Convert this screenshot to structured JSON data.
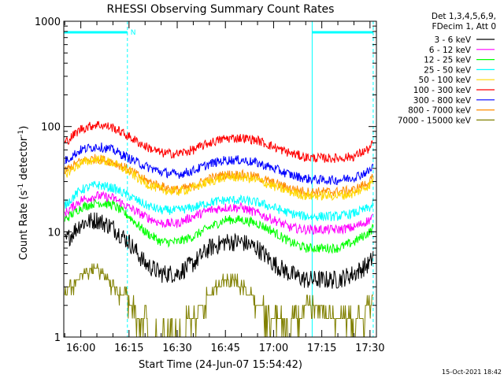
{
  "chart_data": {
    "type": "line",
    "title": "RHESSI Observing Summary Count Rates",
    "xlabel_prefix": "Start Time (24-Jun-07 15:54:42)",
    "ylabel": "Count Rate (s⁻¹ detector⁻¹)",
    "yscale": "log",
    "ylim": [
      1,
      1000
    ],
    "xlim": [
      "15:54:42",
      "17:32:00"
    ],
    "x_ticks": [
      "16:00",
      "16:15",
      "16:30",
      "16:45",
      "17:00",
      "17:15",
      "17:30"
    ],
    "y_ticks": [
      "1",
      "10",
      "100",
      "1000"
    ],
    "legend_header": [
      "Det 1,3,4,5,6,9,",
      "FDecim 1, Att 0"
    ],
    "legend_position": "right",
    "timestamp": "15-Oct-2021 18:42",
    "flag_label": "N",
    "flag_color": "#00ffff",
    "night_intervals": [
      [
        "15:54:42",
        "16:14:30"
      ],
      [
        "17:12:00",
        "17:31:00"
      ]
    ],
    "x": [
      "15:55",
      "16:00",
      "16:05",
      "16:10",
      "16:15",
      "16:20",
      "16:25",
      "16:30",
      "16:35",
      "16:40",
      "16:45",
      "16:50",
      "16:55",
      "17:00",
      "17:05",
      "17:10",
      "17:15",
      "17:20",
      "17:25",
      "17:30",
      "17:31"
    ],
    "series": [
      {
        "name": "3 - 6 keV",
        "color": "#000000",
        "values": [
          8,
          12,
          13,
          11,
          8,
          5,
          4,
          4,
          5,
          7,
          8,
          8,
          7,
          5,
          4,
          3.5,
          3.5,
          3.5,
          4,
          5,
          6
        ]
      },
      {
        "name": "6 - 12 keV",
        "color": "#ff00ff",
        "values": [
          15,
          20,
          22,
          21,
          17,
          14,
          12,
          12,
          14,
          16,
          17,
          17,
          15,
          13,
          11,
          10.5,
          10.5,
          10.5,
          11,
          13,
          14
        ]
      },
      {
        "name": "12 - 25 keV",
        "color": "#00ff00",
        "values": [
          13,
          17,
          19,
          18,
          14,
          10,
          8,
          8,
          9,
          11,
          13,
          13,
          12,
          10,
          8,
          7,
          7,
          7,
          8,
          10,
          11
        ]
      },
      {
        "name": "25 - 50 keV",
        "color": "#00ffff",
        "values": [
          18,
          25,
          28,
          26,
          22,
          18,
          16,
          16,
          17,
          19,
          20,
          20,
          19,
          17,
          15,
          14,
          14,
          14,
          15,
          17,
          18
        ]
      },
      {
        "name": "50 - 100 keV",
        "color": "#ffd700",
        "values": [
          35,
          45,
          49,
          45,
          37,
          29,
          25,
          24,
          26,
          30,
          33,
          33,
          31,
          27,
          24,
          22,
          22,
          22,
          23,
          28,
          31
        ]
      },
      {
        "name": "100 - 300 keV",
        "color": "#ff0000",
        "values": [
          70,
          95,
          105,
          98,
          80,
          65,
          56,
          55,
          60,
          70,
          77,
          78,
          74,
          64,
          56,
          51,
          50,
          50,
          52,
          62,
          70
        ]
      },
      {
        "name": "300 - 800 keV",
        "color": "#0000ff",
        "values": [
          47,
          60,
          65,
          60,
          50,
          42,
          37,
          35,
          38,
          44,
          48,
          48,
          45,
          40,
          35,
          32,
          31,
          31,
          33,
          38,
          43
        ]
      },
      {
        "name": "800 - 7000 keV",
        "color": "#ff8c00",
        "values": [
          38,
          47,
          50,
          46,
          39,
          31,
          27,
          25,
          27,
          32,
          35,
          35,
          33,
          29,
          26,
          24,
          24,
          24,
          25,
          30,
          33
        ]
      },
      {
        "name": "7000 - 15000 keV",
        "color": "#808000",
        "values": [
          2.5,
          4,
          4.5,
          3,
          2.2,
          1.3,
          1.0,
          1.0,
          1.5,
          2.5,
          3.5,
          3.2,
          2.0,
          1.4,
          1.2,
          1.8,
          1.8,
          1.5,
          1.2,
          2.0,
          2.5
        ]
      }
    ]
  }
}
